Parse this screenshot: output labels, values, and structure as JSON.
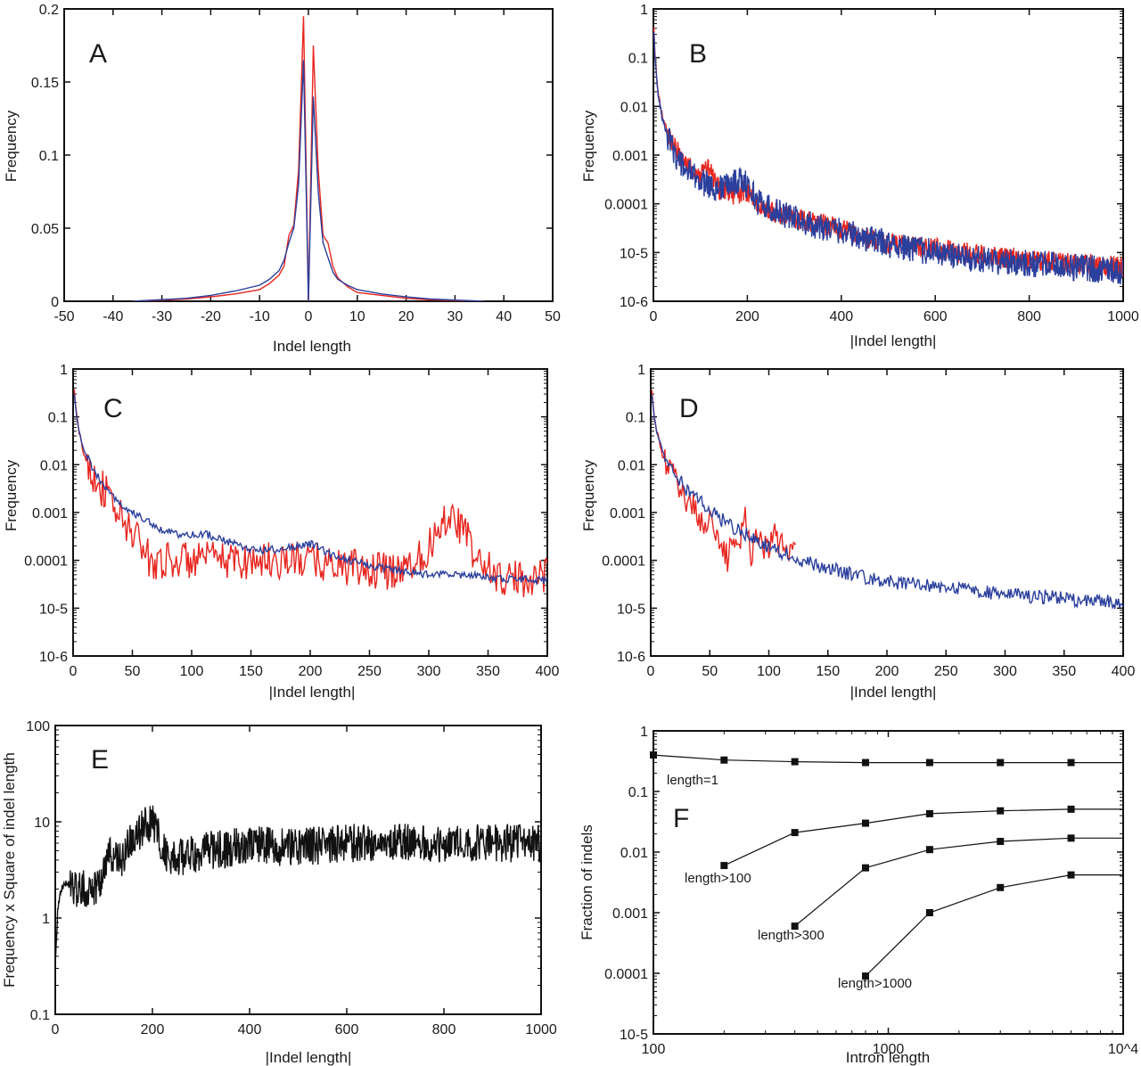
{
  "colors": {
    "red": "#e8251f",
    "blue": "#2b3f9c",
    "black": "#111111"
  },
  "chart_data": [
    {
      "id": "A",
      "panel_label": "A",
      "type": "line",
      "xlabel": "Indel length",
      "ylabel": "Frequency",
      "xlim": [
        -50,
        50
      ],
      "ylim": [
        0,
        0.2
      ],
      "yscale": "linear",
      "xticks": [
        "-50",
        "-40",
        "-30",
        "-20",
        "-10",
        "0",
        "10",
        "20",
        "30",
        "40",
        "50"
      ],
      "yticks": [
        "0",
        "0.05",
        "0.1",
        "0.15",
        "0.2"
      ],
      "series": [
        {
          "name": "red",
          "color": "#e8251f",
          "x": [
            -36,
            -25,
            -20,
            -15,
            -10,
            -8,
            -6,
            -5,
            -4,
            -3,
            -2,
            -1,
            0,
            1,
            2,
            3,
            4,
            5,
            6,
            8,
            10,
            15,
            20,
            25,
            36
          ],
          "y": [
            0,
            0.0015,
            0.003,
            0.005,
            0.008,
            0.012,
            0.018,
            0.024,
            0.045,
            0.052,
            0.09,
            0.195,
            0,
            0.175,
            0.09,
            0.045,
            0.04,
            0.024,
            0.016,
            0.01,
            0.006,
            0.004,
            0.002,
            0.001,
            0
          ]
        },
        {
          "name": "blue",
          "color": "#2b3f9c",
          "x": [
            -36,
            -25,
            -20,
            -15,
            -10,
            -8,
            -6,
            -5,
            -4,
            -3,
            -2,
            -1,
            0,
            1,
            2,
            3,
            4,
            5,
            6,
            8,
            10,
            15,
            20,
            25,
            36
          ],
          "y": [
            0,
            0.002,
            0.004,
            0.007,
            0.011,
            0.015,
            0.021,
            0.028,
            0.04,
            0.05,
            0.08,
            0.165,
            0,
            0.14,
            0.075,
            0.04,
            0.03,
            0.02,
            0.015,
            0.011,
            0.008,
            0.005,
            0.003,
            0.0015,
            0
          ]
        }
      ]
    },
    {
      "id": "B",
      "panel_label": "B",
      "type": "line",
      "xlabel": "|Indel length|",
      "ylabel": "Frequency",
      "xlim": [
        0,
        1000
      ],
      "ylim": [
        1e-06,
        1
      ],
      "yscale": "log",
      "xticks": [
        "0",
        "200",
        "400",
        "600",
        "800",
        "1000"
      ],
      "yticks": [
        "10-6",
        "10-5",
        "0.0001",
        "0.001",
        "0.01",
        "0.1",
        "1"
      ],
      "series": [
        {
          "name": "red",
          "color": "#e8251f",
          "x": [
            1,
            3,
            6,
            10,
            15,
            20,
            30,
            40,
            50,
            60,
            70,
            80,
            90,
            100,
            110,
            120,
            130,
            140,
            150,
            160,
            170,
            180,
            190,
            200,
            220,
            250,
            300,
            350,
            400,
            450,
            500,
            550,
            600,
            650,
            700,
            750,
            800,
            850,
            900,
            950,
            1000
          ],
          "y": [
            0.4,
            0.13,
            0.05,
            0.02,
            0.01,
            0.006,
            0.003,
            0.0018,
            0.0012,
            0.0009,
            0.0007,
            0.00055,
            0.00045,
            0.0004,
            0.00055,
            0.0005,
            0.0003,
            0.0002,
            0.00018,
            0.00016,
            0.00015,
            0.00016,
            0.00018,
            0.00017,
            0.0001,
            7e-05,
            5e-05,
            4e-05,
            3e-05,
            2e-05,
            1.5e-05,
            1.3e-05,
            1.2e-05,
            1e-05,
            9e-06,
            8e-06,
            7e-06,
            6.5e-06,
            6e-06,
            5.5e-06,
            5e-06
          ],
          "noise": 0.22
        },
        {
          "name": "blue",
          "color": "#2b3f9c",
          "x": [
            1,
            3,
            6,
            10,
            15,
            20,
            30,
            40,
            50,
            60,
            70,
            80,
            90,
            100,
            110,
            120,
            130,
            140,
            150,
            160,
            170,
            180,
            190,
            200,
            220,
            250,
            300,
            350,
            400,
            450,
            500,
            550,
            600,
            650,
            700,
            750,
            800,
            850,
            900,
            950,
            1000
          ],
          "y": [
            0.35,
            0.12,
            0.045,
            0.018,
            0.009,
            0.005,
            0.0025,
            0.0015,
            0.0009,
            0.0006,
            0.0005,
            0.0004,
            0.00035,
            0.0003,
            0.00026,
            0.00024,
            0.00022,
            0.00021,
            0.00022,
            0.00025,
            0.00028,
            0.0003,
            0.00029,
            0.00025,
            0.00012,
            8e-05,
            5e-05,
            3.5e-05,
            2.8e-05,
            2e-05,
            1.5e-05,
            1.2e-05,
            1e-05,
            8e-06,
            7e-06,
            6.5e-06,
            6e-06,
            5.5e-06,
            5e-06,
            4.5e-06,
            4e-06
          ],
          "noise": 0.28
        }
      ]
    },
    {
      "id": "C",
      "panel_label": "C",
      "type": "line",
      "xlabel": "|Indel length|",
      "ylabel": "Frequency",
      "xlim": [
        0,
        400
      ],
      "ylim": [
        1e-06,
        1
      ],
      "yscale": "log",
      "xticks": [
        "0",
        "50",
        "100",
        "150",
        "200",
        "250",
        "300",
        "350",
        "400"
      ],
      "yticks": [
        "10-6",
        "10-5",
        "0.0001",
        "0.001",
        "0.01",
        "0.1",
        "1"
      ],
      "series": [
        {
          "name": "red",
          "color": "#e8251f",
          "x": [
            1,
            3,
            5,
            8,
            10,
            15,
            20,
            25,
            30,
            35,
            40,
            45,
            50,
            55,
            60,
            65,
            70,
            100,
            150,
            200,
            250,
            260,
            270,
            280,
            290,
            300,
            305,
            310,
            315,
            320,
            325,
            330,
            335,
            340,
            350,
            360,
            370,
            380,
            390,
            400
          ],
          "y": [
            0.35,
            0.1,
            0.05,
            0.02,
            0.015,
            0.008,
            0.005,
            0.003,
            0.002,
            0.0012,
            0.0008,
            0.0005,
            0.0004,
            0.0003,
            0.00015,
            0.0001,
            0.0001,
            0.0001,
            0.0001,
            0.0001,
            6e-05,
            6e-05,
            6e-05,
            8e-05,
            0.0001,
            0.0002,
            0.0003,
            0.0006,
            0.0009,
            0.0008,
            0.0006,
            0.0004,
            0.0002,
            0.0001,
            7e-05,
            4e-05,
            4e-05,
            4e-05,
            5e-05,
            5e-05
          ],
          "noise": 0.4
        },
        {
          "name": "blue",
          "color": "#2b3f9c",
          "x": [
            1,
            3,
            5,
            8,
            10,
            15,
            20,
            25,
            30,
            40,
            50,
            60,
            70,
            80,
            90,
            100,
            110,
            120,
            130,
            140,
            150,
            160,
            170,
            180,
            190,
            200,
            210,
            220,
            240,
            260,
            280,
            300,
            320,
            340,
            360,
            380,
            400
          ],
          "y": [
            0.3,
            0.1,
            0.05,
            0.025,
            0.018,
            0.01,
            0.006,
            0.004,
            0.0028,
            0.0015,
            0.001,
            0.0007,
            0.0005,
            0.0004,
            0.00034,
            0.00033,
            0.00037,
            0.0003,
            0.00025,
            0.0002,
            0.00017,
            0.00016,
            0.00017,
            0.00018,
            0.0002,
            0.00022,
            0.00017,
            0.00012,
            9e-05,
            7e-05,
            6e-05,
            5e-05,
            5e-05,
            5e-05,
            4e-05,
            4e-05,
            3.8e-05
          ],
          "noise": 0.08
        }
      ]
    },
    {
      "id": "D",
      "panel_label": "D",
      "type": "line",
      "xlabel": "|Indel length|",
      "ylabel": "Frequency",
      "xlim": [
        0,
        400
      ],
      "ylim": [
        1e-06,
        1
      ],
      "yscale": "log",
      "xticks": [
        "0",
        "50",
        "100",
        "150",
        "200",
        "250",
        "300",
        "350",
        "400"
      ],
      "yticks": [
        "10-6",
        "10-5",
        "0.0001",
        "0.001",
        "0.01",
        "0.1",
        "1"
      ],
      "series": [
        {
          "name": "red",
          "color": "#e8251f",
          "x": [
            1,
            3,
            5,
            8,
            10,
            15,
            20,
            25,
            30,
            35,
            40,
            45,
            50,
            55,
            60,
            65,
            70,
            75,
            80,
            85,
            90,
            95,
            100,
            105,
            110,
            115,
            120,
            123
          ],
          "y": [
            0.35,
            0.1,
            0.05,
            0.025,
            0.015,
            0.009,
            0.005,
            0.003,
            0.002,
            0.0015,
            0.0009,
            0.0005,
            0.0008,
            0.0003,
            0.0002,
            0.0001,
            0.0004,
            0.0002,
            0.0008,
            0.00015,
            0.0004,
            0.0002,
            0.0002,
            0.0003,
            0.0002,
            0.00015,
            0.0003,
            0.0002
          ],
          "noise": 0.3
        },
        {
          "name": "blue",
          "color": "#2b3f9c",
          "x": [
            1,
            3,
            5,
            8,
            10,
            15,
            20,
            25,
            30,
            40,
            50,
            60,
            70,
            80,
            90,
            100,
            120,
            140,
            160,
            180,
            200,
            220,
            240,
            260,
            280,
            300,
            320,
            340,
            360,
            380,
            400
          ],
          "y": [
            0.3,
            0.1,
            0.05,
            0.028,
            0.02,
            0.011,
            0.0065,
            0.0045,
            0.003,
            0.0018,
            0.0011,
            0.0007,
            0.0005,
            0.00035,
            0.00025,
            0.00019,
            0.00012,
            8e-05,
            6e-05,
            4.5e-05,
            3.7e-05,
            3.2e-05,
            2.8e-05,
            2.5e-05,
            2.2e-05,
            2e-05,
            1.8e-05,
            1.7e-05,
            1.5e-05,
            1.4e-05,
            1.3e-05
          ],
          "noise": 0.15
        }
      ]
    },
    {
      "id": "E",
      "panel_label": "E",
      "type": "line",
      "xlabel": "|Indel length|",
      "ylabel": "Frequency x Square of indel length",
      "xlim": [
        0,
        1000
      ],
      "ylim": [
        0.1,
        100
      ],
      "yscale": "log",
      "xticks": [
        "0",
        "200",
        "400",
        "600",
        "800",
        "1000"
      ],
      "yticks": [
        "0.1",
        "1",
        "10",
        "100"
      ],
      "series": [
        {
          "name": "black",
          "color": "#111111",
          "x": [
            1,
            5,
            10,
            20,
            30,
            40,
            50,
            60,
            70,
            80,
            90,
            100,
            110,
            120,
            130,
            140,
            150,
            160,
            170,
            180,
            190,
            200,
            210,
            220,
            230,
            240,
            250,
            260,
            280,
            300,
            350,
            400,
            450,
            500,
            600,
            700,
            800,
            900,
            1000
          ],
          "y": [
            0.4,
            1.2,
            1.9,
            2.3,
            2.2,
            2.1,
            2.0,
            2.0,
            2.0,
            2.1,
            2.4,
            3.2,
            4.8,
            4.5,
            3.8,
            4.2,
            5.5,
            6.5,
            7.5,
            8.5,
            9.5,
            10.0,
            8.0,
            5.5,
            4.5,
            4.0,
            4.0,
            4.2,
            4.5,
            5.0,
            5.2,
            6.0,
            5.5,
            5.5,
            6.0,
            6.0,
            6.0,
            6.0,
            6.0
          ],
          "noise": 0.2
        }
      ]
    },
    {
      "id": "F",
      "panel_label": "F",
      "type": "line",
      "xlabel": "Intron length",
      "ylabel": "Fraction of indels",
      "xscale": "log",
      "yscale": "log",
      "xlim": [
        100,
        10000
      ],
      "ylim": [
        1e-05,
        1
      ],
      "xticks": [
        "100",
        "1000",
        "10^4"
      ],
      "yticks": [
        "10-5",
        "0.0001",
        "0.001",
        "0.01",
        "0.1",
        "1"
      ],
      "series": [
        {
          "name": "length=1",
          "color": "#111111",
          "x": [
            100,
            200,
            400,
            800,
            1500,
            3000,
            6000,
            10000
          ],
          "y": [
            0.4,
            0.33,
            0.31,
            0.3,
            0.3,
            0.3,
            0.3,
            0.3
          ]
        },
        {
          "name": "length>100",
          "color": "#111111",
          "x": [
            200,
            400,
            800,
            1500,
            3000,
            6000,
            10000
          ],
          "y": [
            0.006,
            0.021,
            0.03,
            0.043,
            0.048,
            0.051,
            0.051
          ]
        },
        {
          "name": "length>300",
          "color": "#111111",
          "x": [
            400,
            800,
            1500,
            3000,
            6000,
            10000
          ],
          "y": [
            0.0006,
            0.0055,
            0.011,
            0.015,
            0.017,
            0.017
          ]
        },
        {
          "name": "length>1000",
          "color": "#111111",
          "x": [
            800,
            1500,
            3000,
            6000,
            10000
          ],
          "y": [
            9e-05,
            0.001,
            0.0026,
            0.0042,
            0.0042
          ]
        }
      ]
    }
  ]
}
